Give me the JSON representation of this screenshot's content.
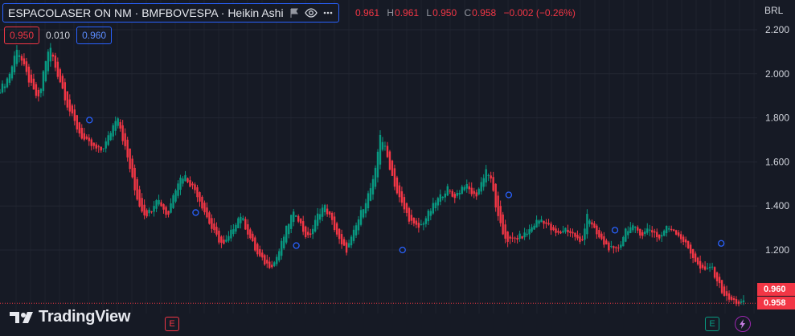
{
  "header": {
    "title": "ESPACOLASER ON NM · BMFBOVESPA · Heikin Ashi",
    "ohlc": [
      {
        "key": "",
        "value": "0.961"
      },
      {
        "key": "H",
        "value": "0.961"
      },
      {
        "key": "L",
        "value": "0.950"
      },
      {
        "key": "C",
        "value": "0.958"
      }
    ],
    "change": "−0.002 (−0.26%)",
    "icons": [
      "flag-icon",
      "eye-icon",
      "more-icon"
    ]
  },
  "quote": {
    "bid": "0.950",
    "spread": "0.010",
    "ask": "0.960"
  },
  "currency": "BRL",
  "brand": "TradingView",
  "events": {
    "earnings_label": "E"
  },
  "price_tags": {
    "ask": "0.960",
    "last": "0.958"
  },
  "colors": {
    "up": "#089981",
    "down": "#f23645",
    "background": "#161a25",
    "grid": "#232733"
  },
  "chart_data": {
    "type": "candlestick",
    "style": "Heikin Ashi",
    "y_axis": {
      "ticks": [
        "2.200",
        "2.000",
        "1.800",
        "1.600",
        "1.400",
        "1.200"
      ],
      "range": [
        0.94,
        2.22
      ],
      "position": "right"
    },
    "grid": true,
    "last_price": 0.958,
    "closes_trend": [
      1.93,
      1.96,
      2.02,
      2.12,
      2.05,
      1.98,
      1.92,
      1.88,
      2.05,
      2.12,
      2.02,
      1.95,
      1.86,
      1.8,
      1.74,
      1.7,
      1.68,
      1.66,
      1.65,
      1.69,
      1.75,
      1.82,
      1.7,
      1.6,
      1.48,
      1.4,
      1.36,
      1.38,
      1.44,
      1.4,
      1.35,
      1.46,
      1.52,
      1.54,
      1.5,
      1.47,
      1.41,
      1.35,
      1.29,
      1.25,
      1.22,
      1.26,
      1.32,
      1.36,
      1.3,
      1.24,
      1.18,
      1.15,
      1.13,
      1.14,
      1.2,
      1.28,
      1.35,
      1.37,
      1.3,
      1.25,
      1.3,
      1.37,
      1.4,
      1.35,
      1.29,
      1.22,
      1.2,
      1.26,
      1.33,
      1.4,
      1.46,
      1.53,
      1.73,
      1.65,
      1.55,
      1.46,
      1.4,
      1.35,
      1.31,
      1.3,
      1.34,
      1.38,
      1.42,
      1.45,
      1.48,
      1.44,
      1.46,
      1.5,
      1.47,
      1.44,
      1.5,
      1.57,
      1.5,
      1.35,
      1.27,
      1.24,
      1.25,
      1.26,
      1.27,
      1.3,
      1.33,
      1.34,
      1.31,
      1.28,
      1.27,
      1.3,
      1.28,
      1.26,
      1.22,
      1.37,
      1.3,
      1.26,
      1.23,
      1.21,
      1.19,
      1.23,
      1.3,
      1.3,
      1.29,
      1.27,
      1.3,
      1.28,
      1.25,
      1.3,
      1.3,
      1.28,
      1.25,
      1.21,
      1.17,
      1.12,
      1.1,
      1.13,
      1.08,
      1.02,
      0.98,
      0.97,
      0.96,
      0.958
    ],
    "markers": [
      {
        "index": 16,
        "value": 1.79
      },
      {
        "index": 35,
        "value": 1.37
      },
      {
        "index": 53,
        "value": 1.22
      },
      {
        "index": 72,
        "value": 1.2
      },
      {
        "index": 91,
        "value": 1.45
      },
      {
        "index": 110,
        "value": 1.29
      },
      {
        "index": 129,
        "value": 1.23
      }
    ]
  }
}
